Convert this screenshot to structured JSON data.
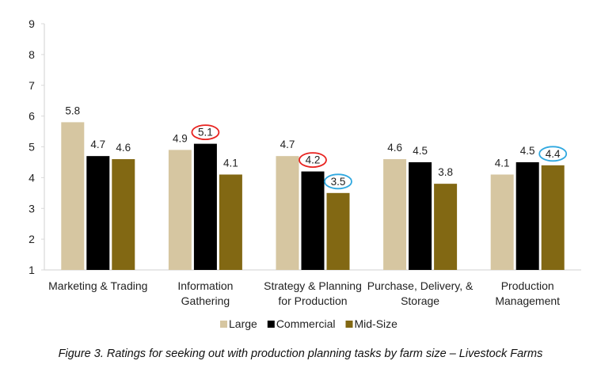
{
  "chart_data": {
    "type": "bar",
    "title": "",
    "xlabel": "",
    "ylabel": "",
    "ylim": [
      1,
      9
    ],
    "yticks": [
      "1",
      "2",
      "3",
      "4",
      "5",
      "6",
      "7",
      "8",
      "9"
    ],
    "grid": false,
    "legend_position": "bottom",
    "categories": [
      [
        "Marketing & Trading"
      ],
      [
        "Information",
        "Gathering"
      ],
      [
        "Strategy & Planning",
        "for Production"
      ],
      [
        "Purchase, Delivery, &",
        "Storage"
      ],
      [
        "Production",
        "Management"
      ]
    ],
    "series": [
      {
        "name": "Large",
        "color": "#d6c6a1",
        "values": [
          5.8,
          4.9,
          4.7,
          4.6,
          4.1
        ],
        "labels": [
          "5.8",
          "4.9",
          "4.7",
          "4.6",
          "4.1"
        ]
      },
      {
        "name": "Commercial",
        "color": "#000000",
        "values": [
          4.7,
          5.1,
          4.2,
          4.5,
          4.5
        ],
        "labels": [
          "4.7",
          "5.1",
          "4.2",
          "4.5",
          "4.5"
        ]
      },
      {
        "name": "Mid-Size",
        "color": "#826813",
        "values": [
          4.6,
          4.1,
          3.5,
          3.8,
          4.4
        ],
        "labels": [
          "4.6",
          "4.1",
          "3.5",
          "3.8",
          "4.4"
        ]
      }
    ],
    "highlights": [
      {
        "series": 1,
        "category": 1,
        "color": "#e8221f"
      },
      {
        "series": 1,
        "category": 2,
        "color": "#e8221f"
      },
      {
        "series": 2,
        "category": 2,
        "color": "#2fa8e0"
      },
      {
        "series": 2,
        "category": 4,
        "color": "#2fa8e0"
      }
    ]
  },
  "caption": "Figure 3. Ratings for seeking out with production planning tasks by farm size – Livestock Farms"
}
